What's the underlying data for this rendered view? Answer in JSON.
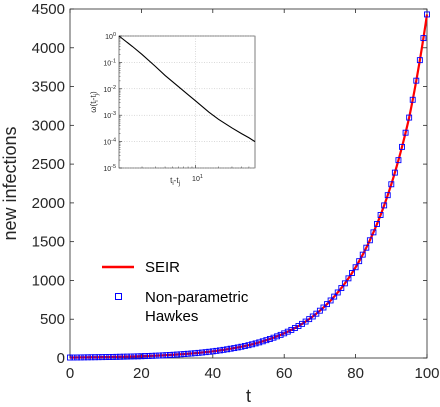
{
  "chart_data": [
    {
      "type": "line",
      "xlabel": "t",
      "ylabel": "new infections",
      "xlim": [
        0,
        100
      ],
      "ylim": [
        0,
        4500
      ],
      "xticks": [
        0,
        20,
        40,
        60,
        80,
        100
      ],
      "xtick_labels": [
        "0",
        "20",
        "40",
        "60",
        "80",
        "100"
      ],
      "yticks": [
        0,
        500,
        1000,
        1500,
        2000,
        2500,
        3000,
        3500,
        4000,
        4500
      ],
      "ytick_labels": [
        "0",
        "500",
        "1000",
        "1500",
        "2000",
        "2500",
        "3000",
        "3500",
        "4000",
        "4500"
      ],
      "legend_placement": "lower-left",
      "series": [
        {
          "name": "SEIR",
          "style": "line",
          "color": "#ff0000",
          "x": [
            0,
            5,
            10,
            15,
            20,
            25,
            30,
            35,
            40,
            45,
            50,
            55,
            60,
            65,
            70,
            75,
            80,
            85,
            90,
            95,
            100
          ],
          "y": [
            6,
            9,
            12,
            17,
            23,
            32,
            45,
            62,
            86,
            120,
            165,
            230,
            318,
            440,
            610,
            845,
            1170,
            1620,
            2240,
            3100,
            4430
          ]
        },
        {
          "name": "Non-parametric Hawkes",
          "style": "markers",
          "marker": "square",
          "color": "#0000ff",
          "x": [
            0,
            5,
            10,
            15,
            20,
            25,
            30,
            35,
            40,
            45,
            50,
            55,
            60,
            65,
            70,
            75,
            80,
            85,
            90,
            95,
            100
          ],
          "y": [
            6,
            9,
            12,
            17,
            23,
            32,
            45,
            62,
            86,
            120,
            165,
            230,
            318,
            440,
            610,
            845,
            1170,
            1620,
            2240,
            3100,
            4430
          ]
        }
      ]
    },
    {
      "type": "line",
      "title": "",
      "xlabel": "t_i - t_j",
      "ylabel": "ω(t_i - t_j)",
      "xscale": "log",
      "yscale": "log",
      "xlim": [
        1,
        60
      ],
      "ylim": [
        1e-05,
        1
      ],
      "xtick_labels": [
        "10^1"
      ],
      "ytick_labels": [
        "10^0",
        "10^-1",
        "10^-2",
        "10^-3",
        "10^-4",
        "10^-5"
      ],
      "series": [
        {
          "color": "#000000",
          "x": [
            1,
            1.5,
            2,
            3,
            4,
            6,
            8,
            10,
            15,
            20,
            30,
            40,
            50,
            60
          ],
          "y": [
            1,
            0.4,
            0.2,
            0.07,
            0.032,
            0.012,
            0.006,
            0.0035,
            0.0013,
            0.0007,
            0.00033,
            0.0002,
            0.00014,
            0.0001
          ]
        }
      ]
    }
  ]
}
